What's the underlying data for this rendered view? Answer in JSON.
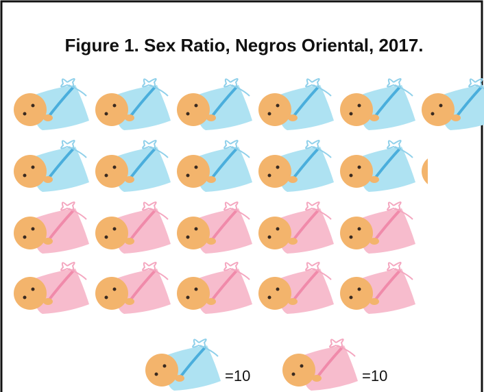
{
  "chart_data": {
    "type": "pictograph",
    "title": "Figure 1. Sex Ratio, Negros Oriental, 2017.",
    "series": [
      {
        "color": "#aee2f2",
        "values": [
          111
        ],
        "unit": {
          "value": 10,
          "label": "=10"
        }
      },
      {
        "color": "#f7bccd",
        "values": [
          100
        ],
        "unit": {
          "value": 10,
          "label": "=10"
        }
      }
    ]
  }
}
